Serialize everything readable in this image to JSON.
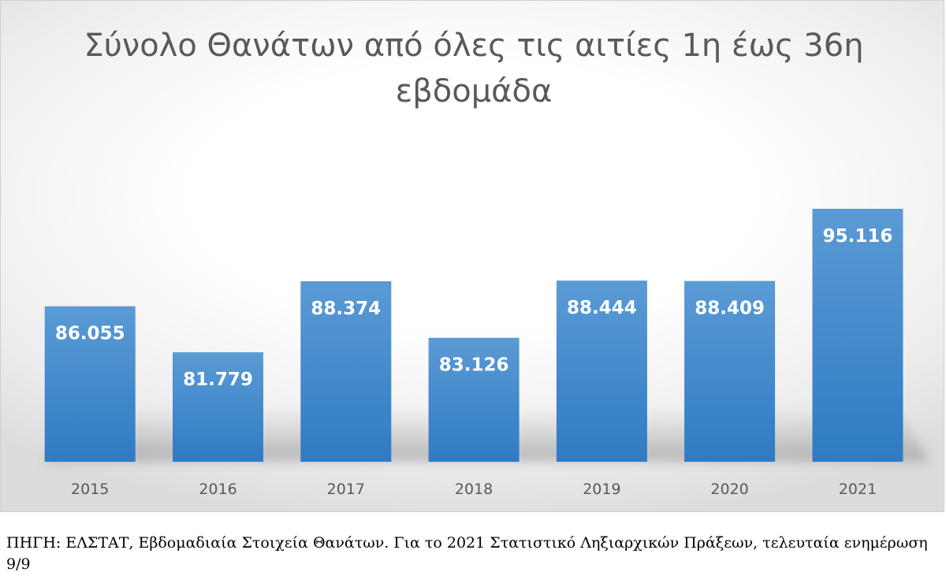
{
  "chart_data": {
    "type": "bar",
    "title": "Σύνολο Θανάτων από όλες τις αιτίες 1η έως 36η εβδομάδα",
    "categories": [
      "2015",
      "2016",
      "2017",
      "2018",
      "2019",
      "2020",
      "2021"
    ],
    "values": [
      86055,
      81779,
      88374,
      83126,
      88444,
      88409,
      95116
    ],
    "data_labels": [
      "86.055",
      "81.779",
      "88.374",
      "83.126",
      "88.444",
      "88.409",
      "95.116"
    ],
    "xlabel": "",
    "ylabel": "",
    "y_axis_visible": false,
    "grid": false,
    "legend": "none",
    "colors": {
      "bar_top": "#5b9bd5",
      "bar_bottom": "#2e7bc4",
      "title": "#595959",
      "tick_label": "#595959",
      "data_label": "#ffffff"
    }
  },
  "source_note": "ΠΗΓΗ: ΕΛΣΤΑΤ, Εβδομαδιαία Στοιχεία Θανάτων. Για το 2021 Στατιστικό Ληξιαρχικών Πράξεων, τελευταία ενημέρωση 9/9"
}
